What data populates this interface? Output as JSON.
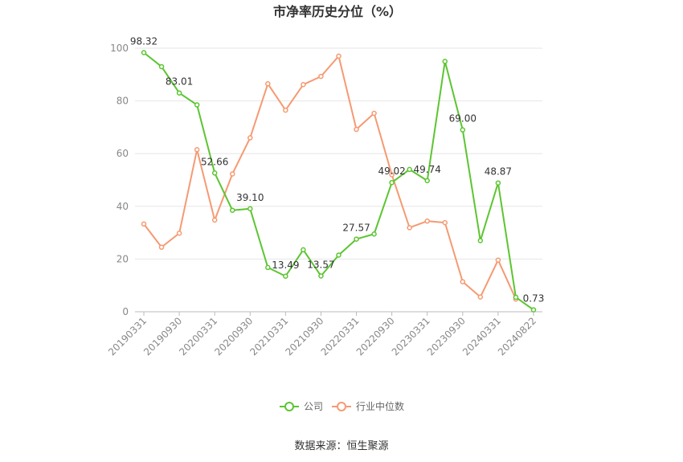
{
  "chart_data": {
    "type": "line",
    "title": "市净率历史分位（%）",
    "xlabel": "",
    "ylabel": "",
    "ylim": [
      0,
      100
    ],
    "yticks": [
      0,
      20,
      40,
      60,
      80,
      100
    ],
    "grid": true,
    "legend_position": "bottom",
    "x": [
      "20190331",
      "20190630",
      "20190930",
      "20191231",
      "20200331",
      "20200630",
      "20200930",
      "20201231",
      "20210331",
      "20210630",
      "20210930",
      "20211231",
      "20220331",
      "20220630",
      "20220930",
      "20221231",
      "20230331",
      "20230630",
      "20230930",
      "20231231",
      "20240331",
      "20240630",
      "20240822"
    ],
    "x_tick_labels": [
      "20190331",
      "20190930",
      "20200331",
      "20200930",
      "20210331",
      "20210930",
      "20220331",
      "20220930",
      "20230331",
      "20230930",
      "20240331",
      "20240822"
    ],
    "series": [
      {
        "name": "公司",
        "color": "#5cc531",
        "values": [
          98.32,
          93.0,
          83.01,
          78.5,
          52.66,
          38.5,
          39.1,
          16.8,
          13.49,
          23.5,
          13.57,
          21.5,
          27.57,
          29.5,
          49.02,
          54.0,
          49.74,
          95.0,
          69.0,
          27.0,
          48.87,
          5.5,
          0.73
        ],
        "labels": {
          "0": "98.32",
          "2": "83.01",
          "4": "52.66",
          "6": "39.10",
          "8": "13.49",
          "10": "13.57",
          "12": "27.57",
          "14": "49.02",
          "16": "49.74",
          "18": "69.00",
          "20": "48.87",
          "22": "0.73"
        }
      },
      {
        "name": "行业中位数",
        "color": "#f59a72",
        "values": [
          33.3,
          24.5,
          29.8,
          61.5,
          34.8,
          52.3,
          66.0,
          86.5,
          76.5,
          86.2,
          89.3,
          97.0,
          69.2,
          75.3,
          52.0,
          31.9,
          34.4,
          33.8,
          11.4,
          5.6,
          19.6,
          4.8,
          null
        ]
      }
    ]
  },
  "source": "数据来源：恒生聚源"
}
